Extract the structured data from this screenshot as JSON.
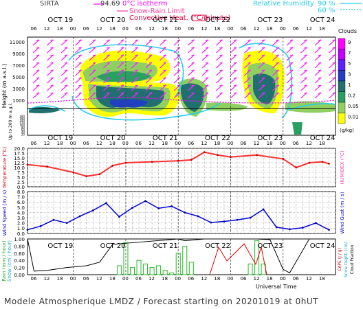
{
  "header": {
    "station": "SIRTA",
    "coord": "94.69",
    "isotherm_label": "0°C isotherm",
    "snow_rain_label": "Snow-Rain Limit",
    "convective_label": "Convective Heat. (°C/minute)",
    "rh_label": "Relative Humidity",
    "rh_90": "90 %",
    "rh_60": "60 %"
  },
  "clouds_legend": {
    "title": "Clouds",
    "unit": "(g/kg)",
    "levels": [
      "9",
      "7",
      "5",
      "3",
      "1",
      "0.2",
      "0.05",
      "0.01"
    ],
    "colors": [
      "#ff00ff",
      "#c000ff",
      "#6020ff",
      "#2040c0",
      "#207070",
      "#28a060",
      "#90d060",
      "#ffff00"
    ]
  },
  "axes": {
    "height_label": "Height (m a.s.l.)",
    "height_sub": "Up to 200 m a.g.l.",
    "temp_label": "Temperature (°C)",
    "humidex_label": "HUMIDEX (°C)",
    "wind_label": "Wind Speed (m / s)",
    "gust_label": "Wind Gust (m / s)",
    "rain_label": "Rain (mm / hour)",
    "snow_label": "Snow (cm / hour)",
    "cape_label": "CAPE (J / g)",
    "snowdepth_label": "Snow Depth (cm)",
    "cloudfrac_label": "Cloud Fraction",
    "time_label": "Universal Time",
    "days": [
      "OCT 19",
      "OCT 20",
      "OCT 21",
      "OCT 22",
      "OCT 23",
      "OCT 24"
    ],
    "hours": [
      "06",
      "12",
      "18",
      "00",
      "06",
      "12",
      "18",
      "00",
      "06",
      "12",
      "18",
      "00",
      "06",
      "12",
      "18",
      "00",
      "06",
      "12",
      "18",
      "00",
      "06",
      "12",
      "18"
    ],
    "height_ticks": [
      "11000",
      "9000",
      "7000",
      "5000",
      "3000",
      "1000"
    ],
    "low_ticks": [
      "180",
      "160",
      "140",
      "120",
      "100",
      "80",
      "60",
      "40",
      "20"
    ],
    "temp_ticks": [
      "20.0",
      "17.5",
      "15.0",
      "12.5",
      "10.0",
      "7.5",
      "5.0",
      "2.5",
      "0.0"
    ],
    "wind_ticks": [
      "8.0",
      "7.0",
      "6.0",
      "5.0",
      "4.0",
      "3.0",
      "2.0",
      "1.0",
      "0.0"
    ],
    "rain_ticks": [
      "1.00",
      "0.80",
      "0.60",
      "0.40",
      "0.20",
      "0.00"
    ]
  },
  "footer": "Modele Atmospherique LMDZ / Forecast starting on 20201019 at 0hUT",
  "chart_data": [
    {
      "type": "line",
      "title": "Temperature",
      "xlabel": "Universal Time",
      "ylabel": "Temperature (°C)",
      "ylim": [
        0,
        20
      ],
      "x": [
        "10-19 03",
        "10-19 12",
        "10-20 00",
        "10-20 06",
        "10-20 12",
        "10-20 18",
        "10-21 00",
        "10-21 12",
        "10-22 00",
        "10-22 06",
        "10-22 12",
        "10-22 18",
        "10-23 00",
        "10-23 12",
        "10-24 00",
        "10-24 06",
        "10-24 12",
        "10-24 18",
        "10-24 21"
      ],
      "values": [
        11.5,
        10.5,
        7.5,
        5.5,
        6.5,
        11.0,
        12.5,
        13.0,
        13.5,
        14.0,
        18.0,
        16.5,
        15.5,
        16.5,
        14.5,
        10.0,
        12.5,
        13.0,
        12.0
      ]
    },
    {
      "type": "line",
      "title": "Wind Speed",
      "xlabel": "Universal Time",
      "ylabel": "Wind Speed (m / s)",
      "ylim": [
        0,
        8
      ],
      "x": [
        "10-19 03",
        "10-19 09",
        "10-19 15",
        "10-19 21",
        "10-20 03",
        "10-20 09",
        "10-20 15",
        "10-20 21",
        "10-21 03",
        "10-21 09",
        "10-21 15",
        "10-21 21",
        "10-22 03",
        "10-22 09",
        "10-22 15",
        "10-22 21",
        "10-23 03",
        "10-23 09",
        "10-23 15",
        "10-23 21",
        "10-24 03",
        "10-24 09",
        "10-24 15",
        "10-24 21"
      ],
      "values": [
        0.7,
        1.4,
        2.6,
        2.0,
        3.3,
        4.4,
        5.8,
        3.2,
        4.9,
        6.2,
        4.8,
        5.2,
        4.0,
        3.3,
        2.1,
        2.3,
        2.6,
        3.0,
        4.6,
        1.2,
        0.8,
        1.1,
        2.0,
        0.7
      ]
    },
    {
      "type": "line",
      "title": "Cloud Fraction",
      "xlabel": "Universal Time",
      "ylim": [
        0,
        1
      ],
      "x": [
        "10-19 03",
        "10-19 06",
        "10-19 12",
        "10-19 21",
        "10-20 06",
        "10-20 12",
        "10-20 18",
        "10-22 00",
        "10-22 03",
        "10-22 12",
        "10-23 12",
        "10-23 18",
        "10-24 00",
        "10-24 03",
        "10-24 12",
        "10-24 21"
      ],
      "values": [
        1.0,
        0.1,
        0.12,
        0.2,
        0.25,
        0.35,
        0.85,
        1.0,
        0.95,
        1.0,
        1.0,
        0.98,
        0.15,
        0.05,
        1.0,
        1.0
      ]
    },
    {
      "type": "bar",
      "title": "Rain",
      "xlabel": "Universal Time",
      "ylabel": "Rain (mm / hour)",
      "ylim": [
        0,
        1
      ],
      "categories": [
        "10-20 21",
        "10-21 00",
        "10-21 03",
        "10-21 06",
        "10-21 09",
        "10-21 12",
        "10-21 15",
        "10-21 18",
        "10-21 21",
        "10-22 00",
        "10-22 03",
        "10-22 06",
        "10-23 09",
        "10-23 12",
        "10-23 15"
      ],
      "values": [
        0.25,
        0.9,
        0.2,
        0.4,
        0.3,
        0.2,
        0.25,
        0.12,
        0.05,
        0.6,
        0.8,
        0.35,
        0.3,
        0.95,
        0.3
      ]
    }
  ]
}
